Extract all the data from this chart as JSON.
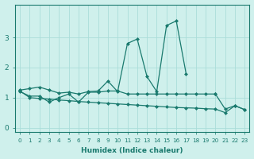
{
  "x": [
    0,
    1,
    2,
    3,
    4,
    5,
    6,
    7,
    8,
    9,
    10,
    11,
    12,
    13,
    14,
    15,
    16,
    17,
    18,
    19,
    20,
    21,
    22,
    23
  ],
  "line_upper": [
    1.25,
    1.3,
    1.35,
    1.25,
    1.15,
    1.18,
    1.12,
    1.2,
    1.22,
    1.55,
    1.2,
    2.8,
    2.95,
    1.7,
    1.2,
    3.4,
    3.55,
    1.8,
    null,
    null,
    null,
    null,
    null,
    null
  ],
  "line_flat": [
    1.2,
    1.05,
    1.05,
    0.85,
    1.0,
    1.12,
    0.85,
    1.18,
    1.18,
    1.22,
    1.22,
    1.12,
    1.12,
    1.12,
    1.12,
    1.12,
    1.12,
    1.12,
    1.12,
    1.12,
    1.12,
    null,
    null,
    null
  ],
  "line_desc": [
    1.22,
    1.0,
    0.97,
    0.95,
    0.92,
    0.9,
    0.87,
    0.85,
    0.83,
    0.81,
    0.79,
    0.77,
    0.75,
    0.73,
    0.71,
    0.69,
    0.67,
    0.66,
    0.65,
    0.63,
    0.62,
    0.5,
    0.73,
    0.6
  ],
  "line_right": [
    null,
    null,
    null,
    null,
    null,
    null,
    null,
    null,
    null,
    null,
    null,
    null,
    null,
    null,
    null,
    null,
    null,
    null,
    null,
    null,
    1.12,
    0.62,
    0.73,
    0.6
  ],
  "color": "#1a7a6e",
  "bg_color": "#cff0ec",
  "grid_color": "#aaddda",
  "xlabel": "Humidex (Indice chaleur)",
  "xlim": [
    -0.5,
    23.5
  ],
  "ylim": [
    -0.15,
    4.1
  ],
  "yticks": [
    0,
    1,
    2,
    3
  ],
  "xticks": [
    0,
    1,
    2,
    3,
    4,
    5,
    6,
    7,
    8,
    9,
    10,
    11,
    12,
    13,
    14,
    15,
    16,
    17,
    18,
    19,
    20,
    21,
    22,
    23
  ]
}
